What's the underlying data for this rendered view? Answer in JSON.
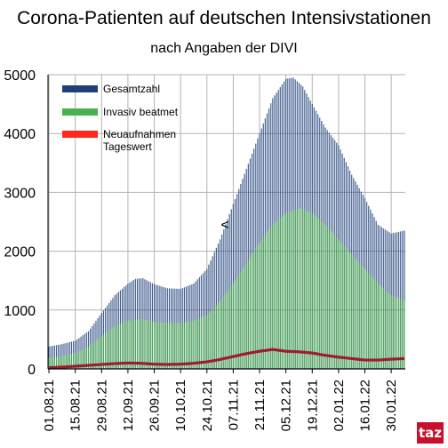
{
  "chart_data": {
    "type": "bar",
    "title": "Corona-Patienten auf deutschen Intensivstationen",
    "subtitle": "nach Angaben der DIVI",
    "xlabel": "",
    "ylabel": "",
    "ylim": [
      0,
      5000
    ],
    "yticks": [
      0,
      1000,
      2000,
      3000,
      4000,
      5000
    ],
    "xticks": [
      "01.08.21",
      "15.08.21",
      "29.08.21",
      "12.09.21",
      "26.09.21",
      "10.10.21",
      "24.10.21",
      "07.11.21",
      "21.11.21",
      "05.12.21",
      "19.12.21",
      "02.01.22",
      "16.01.22",
      "30.01.22"
    ],
    "grid": true,
    "legend_position": "top-left",
    "annotation": "<",
    "colors": {
      "gesamt": "#1f3f7a",
      "invasiv": "#4caf50",
      "neu": "#9e1b32",
      "neu_legend": "#ff2a1a"
    },
    "x_range": [
      "2021-08-01",
      "2022-02-06"
    ],
    "series": [
      {
        "name": "Gesamtzahl",
        "anchors": [
          [
            "2021-08-01",
            380
          ],
          [
            "2021-08-08",
            420
          ],
          [
            "2021-08-15",
            480
          ],
          [
            "2021-08-22",
            640
          ],
          [
            "2021-08-29",
            950
          ],
          [
            "2021-09-05",
            1250
          ],
          [
            "2021-09-12",
            1450
          ],
          [
            "2021-09-16",
            1530
          ],
          [
            "2021-09-20",
            1540
          ],
          [
            "2021-09-26",
            1440
          ],
          [
            "2021-10-03",
            1370
          ],
          [
            "2021-10-10",
            1360
          ],
          [
            "2021-10-17",
            1450
          ],
          [
            "2021-10-24",
            1700
          ],
          [
            "2021-10-31",
            2200
          ],
          [
            "2021-11-07",
            2800
          ],
          [
            "2021-11-14",
            3400
          ],
          [
            "2021-11-21",
            4000
          ],
          [
            "2021-11-28",
            4600
          ],
          [
            "2021-12-05",
            4930
          ],
          [
            "2021-12-09",
            4950
          ],
          [
            "2021-12-14",
            4800
          ],
          [
            "2021-12-19",
            4500
          ],
          [
            "2021-12-26",
            4100
          ],
          [
            "2022-01-02",
            3800
          ],
          [
            "2022-01-09",
            3300
          ],
          [
            "2022-01-16",
            2900
          ],
          [
            "2022-01-23",
            2450
          ],
          [
            "2022-01-30",
            2300
          ],
          [
            "2022-02-06",
            2350
          ]
        ]
      },
      {
        "name": "Invasiv beatmet",
        "anchors": [
          [
            "2021-08-01",
            190
          ],
          [
            "2021-08-08",
            220
          ],
          [
            "2021-08-15",
            270
          ],
          [
            "2021-08-22",
            380
          ],
          [
            "2021-08-29",
            560
          ],
          [
            "2021-09-05",
            730
          ],
          [
            "2021-09-12",
            820
          ],
          [
            "2021-09-19",
            850
          ],
          [
            "2021-09-26",
            800
          ],
          [
            "2021-10-03",
            780
          ],
          [
            "2021-10-10",
            780
          ],
          [
            "2021-10-17",
            820
          ],
          [
            "2021-10-24",
            920
          ],
          [
            "2021-10-31",
            1150
          ],
          [
            "2021-11-07",
            1450
          ],
          [
            "2021-11-14",
            1800
          ],
          [
            "2021-11-21",
            2150
          ],
          [
            "2021-11-28",
            2450
          ],
          [
            "2021-12-05",
            2650
          ],
          [
            "2021-12-12",
            2730
          ],
          [
            "2021-12-19",
            2650
          ],
          [
            "2021-12-26",
            2450
          ],
          [
            "2022-01-02",
            2200
          ],
          [
            "2022-01-09",
            1950
          ],
          [
            "2022-01-16",
            1700
          ],
          [
            "2022-01-23",
            1450
          ],
          [
            "2022-01-30",
            1250
          ],
          [
            "2022-02-06",
            1170
          ]
        ]
      },
      {
        "name": "Neuaufnahmen Tageswert",
        "anchors": [
          [
            "2021-08-01",
            20
          ],
          [
            "2021-08-08",
            30
          ],
          [
            "2021-08-15",
            45
          ],
          [
            "2021-08-22",
            60
          ],
          [
            "2021-08-29",
            75
          ],
          [
            "2021-09-05",
            90
          ],
          [
            "2021-09-12",
            100
          ],
          [
            "2021-09-19",
            95
          ],
          [
            "2021-09-26",
            80
          ],
          [
            "2021-10-03",
            75
          ],
          [
            "2021-10-10",
            80
          ],
          [
            "2021-10-17",
            95
          ],
          [
            "2021-10-24",
            120
          ],
          [
            "2021-10-31",
            160
          ],
          [
            "2021-11-07",
            210
          ],
          [
            "2021-11-14",
            260
          ],
          [
            "2021-11-21",
            300
          ],
          [
            "2021-11-28",
            330
          ],
          [
            "2021-12-05",
            300
          ],
          [
            "2021-12-12",
            290
          ],
          [
            "2021-12-19",
            270
          ],
          [
            "2021-12-26",
            230
          ],
          [
            "2022-01-02",
            200
          ],
          [
            "2022-01-09",
            175
          ],
          [
            "2022-01-16",
            150
          ],
          [
            "2022-01-23",
            150
          ],
          [
            "2022-01-30",
            165
          ],
          [
            "2022-02-06",
            175
          ]
        ]
      }
    ]
  },
  "legend": [
    {
      "label": "Gesamtzahl"
    },
    {
      "label": "Invasiv beatmet"
    },
    {
      "label": "Neuaufnahmen\nTageswert"
    }
  ],
  "logo": {
    "text": "taz"
  }
}
